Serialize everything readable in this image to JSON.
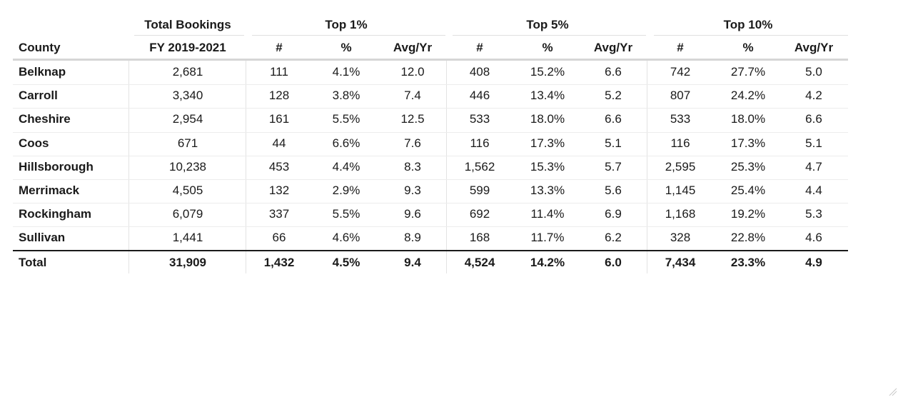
{
  "chart_data": {
    "type": "table",
    "group_headers": [
      "Total Bookings",
      "Top 1%",
      "Top 5%",
      "Top 10%"
    ],
    "columns": [
      "County",
      "FY 2019-2021",
      "#",
      "%",
      "Avg/Yr",
      "#",
      "%",
      "Avg/Yr",
      "#",
      "%",
      "Avg/Yr"
    ],
    "rows": [
      [
        "Belknap",
        "2,681",
        "111",
        "4.1%",
        "12.0",
        "408",
        "15.2%",
        "6.6",
        "742",
        "27.7%",
        "5.0"
      ],
      [
        "Carroll",
        "3,340",
        "128",
        "3.8%",
        "7.4",
        "446",
        "13.4%",
        "5.2",
        "807",
        "24.2%",
        "4.2"
      ],
      [
        "Cheshire",
        "2,954",
        "161",
        "5.5%",
        "12.5",
        "533",
        "18.0%",
        "6.6",
        "533",
        "18.0%",
        "6.6"
      ],
      [
        "Coos",
        "671",
        "44",
        "6.6%",
        "7.6",
        "116",
        "17.3%",
        "5.1",
        "116",
        "17.3%",
        "5.1"
      ],
      [
        "Hillsborough",
        "10,238",
        "453",
        "4.4%",
        "8.3",
        "1,562",
        "15.3%",
        "5.7",
        "2,595",
        "25.3%",
        "4.7"
      ],
      [
        "Merrimack",
        "4,505",
        "132",
        "2.9%",
        "9.3",
        "599",
        "13.3%",
        "5.6",
        "1,145",
        "25.4%",
        "4.4"
      ],
      [
        "Rockingham",
        "6,079",
        "337",
        "5.5%",
        "9.6",
        "692",
        "11.4%",
        "6.9",
        "1,168",
        "19.2%",
        "5.3"
      ],
      [
        "Sullivan",
        "1,441",
        "66",
        "4.6%",
        "8.9",
        "168",
        "11.7%",
        "6.2",
        "328",
        "22.8%",
        "4.6"
      ]
    ],
    "total_row": [
      "Total",
      "31,909",
      "1,432",
      "4.5%",
      "9.4",
      "4,524",
      "14.2%",
      "6.0",
      "7,434",
      "23.3%",
      "4.9"
    ]
  }
}
